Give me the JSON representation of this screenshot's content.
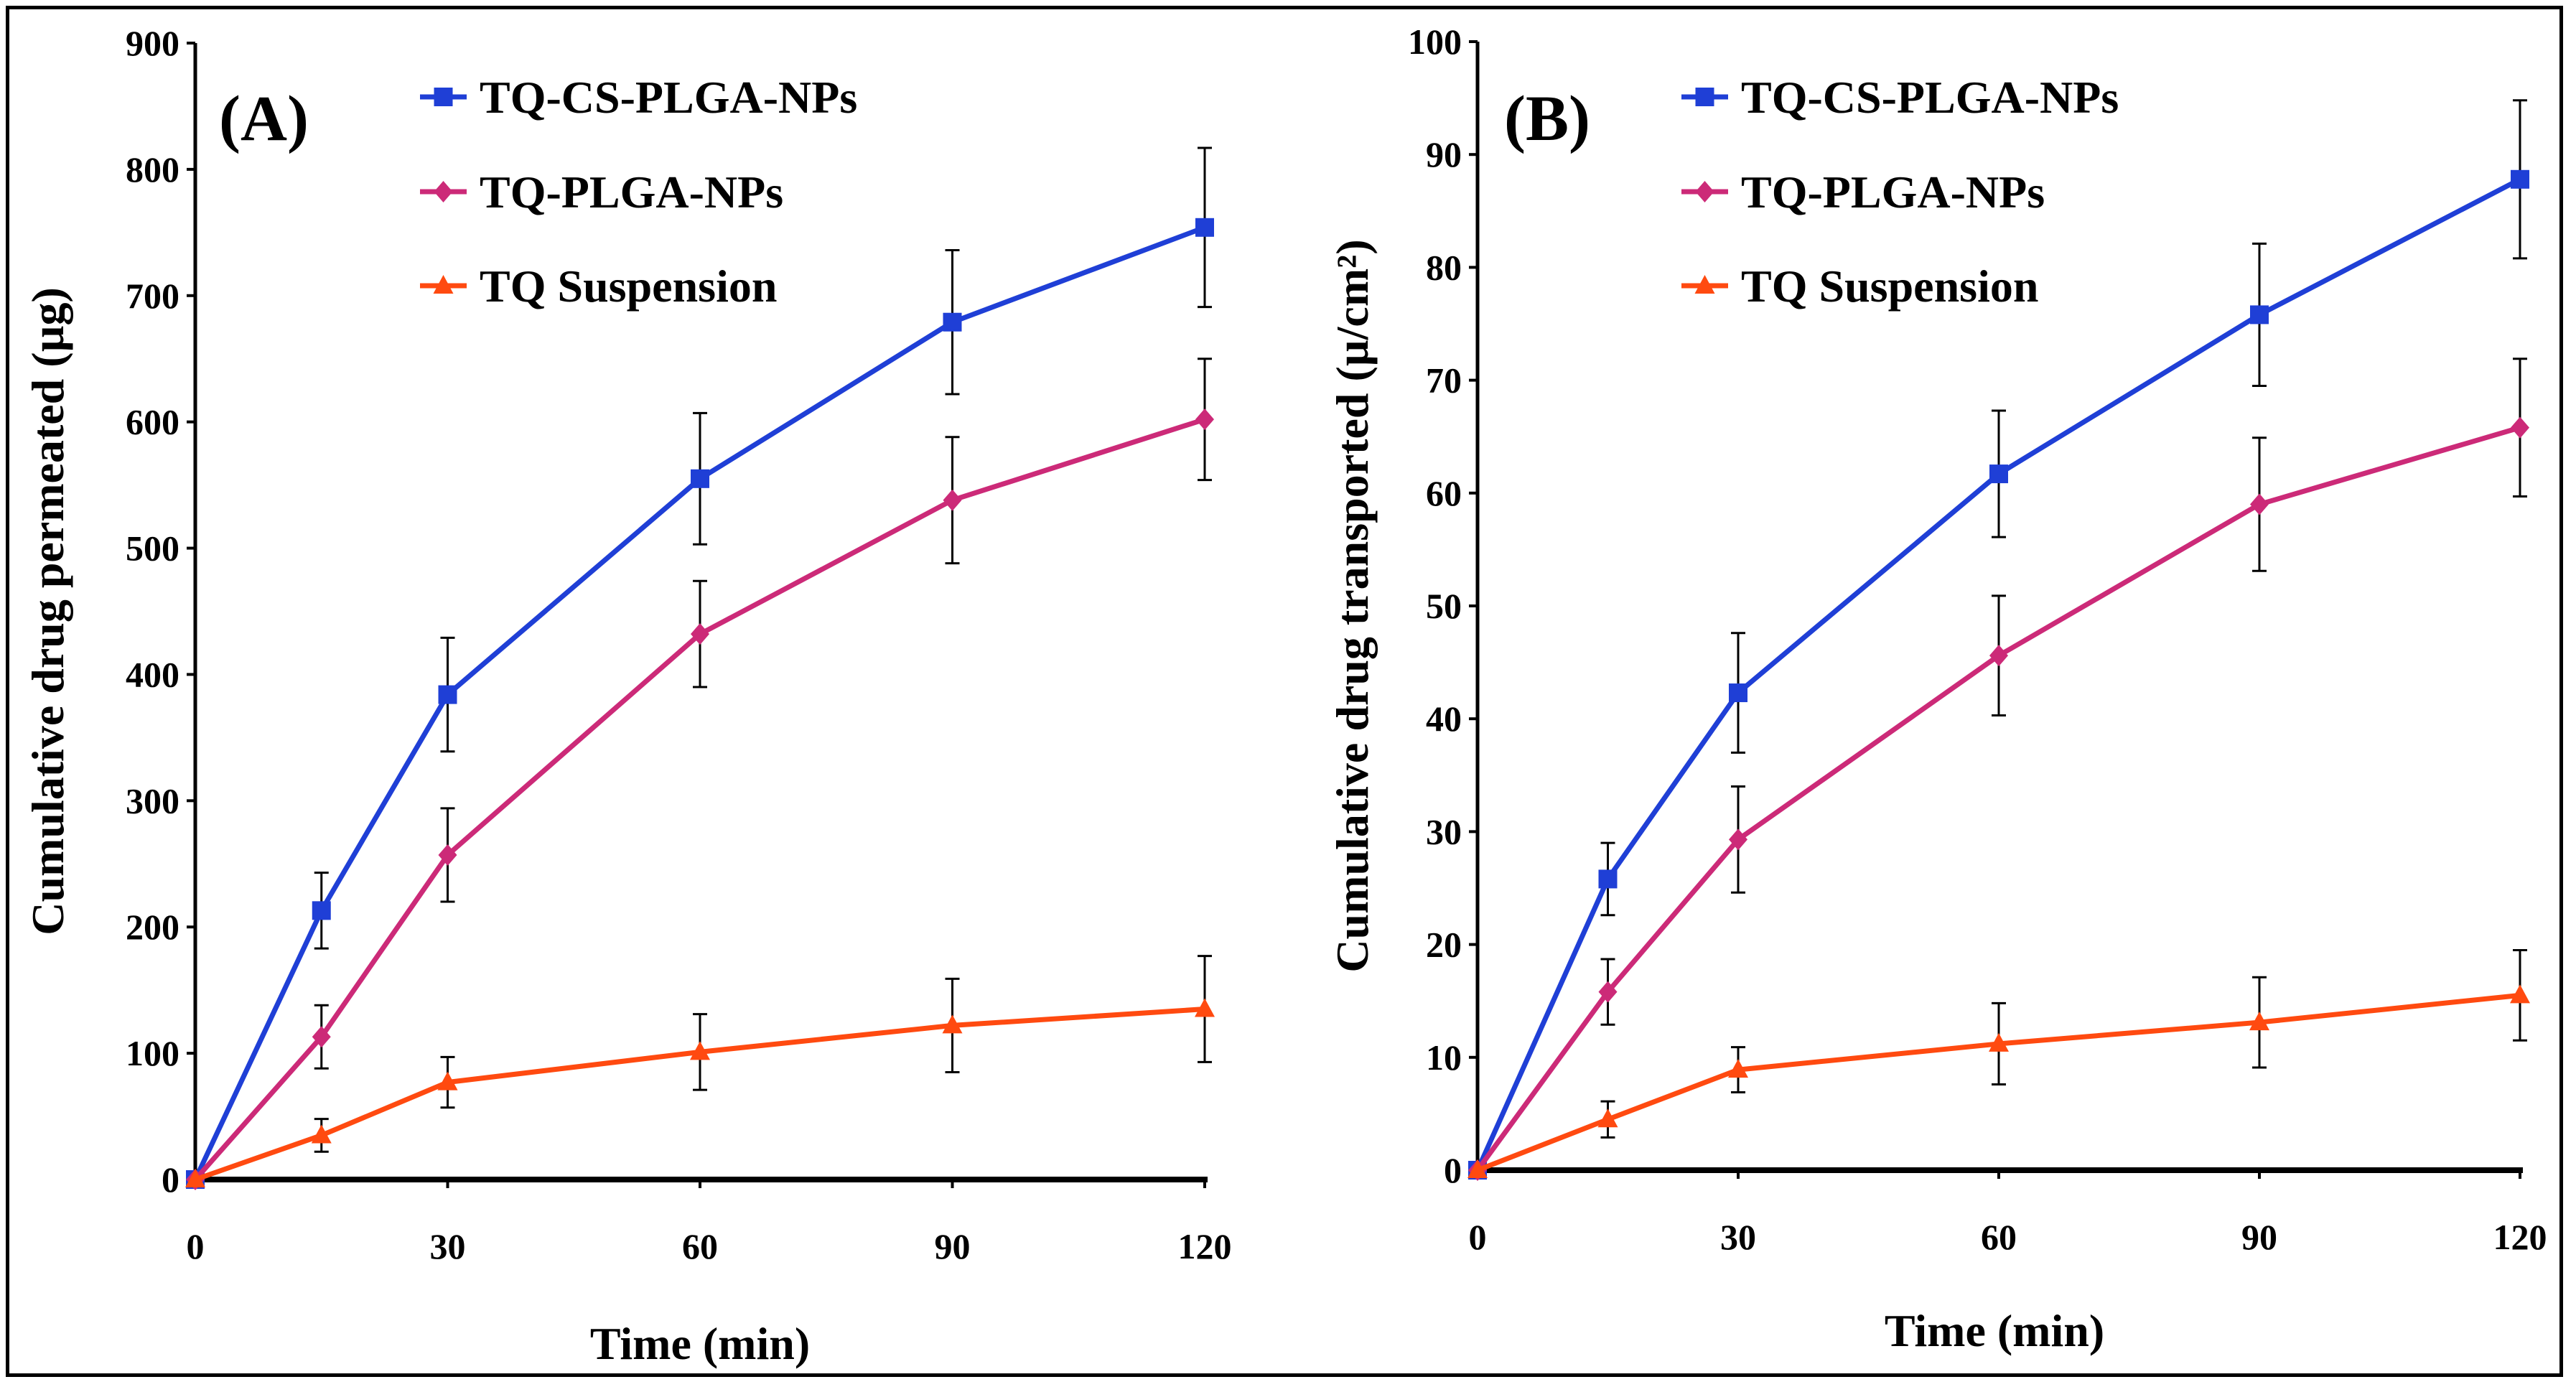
{
  "chart_data": [
    {
      "type": "line",
      "panel_label": "(A)",
      "xlabel": "Time (min)",
      "ylabel": "Cumulative  drug  permeated  (µg)",
      "xlim": [
        0,
        120
      ],
      "ylim": [
        0,
        900
      ],
      "x_ticks": [
        "0",
        "30",
        "60",
        "90",
        "120"
      ],
      "y_ticks": [
        "0",
        "100",
        "200",
        "300",
        "400",
        "500",
        "600",
        "700",
        "800",
        "900"
      ],
      "legend_position": "top-center",
      "x": [
        0,
        15,
        30,
        60,
        90,
        120
      ],
      "series": [
        {
          "name": "TQ-CS-PLGA-NPs",
          "color": "#1f3fd6",
          "marker": "square",
          "values": [
            0,
            213,
            384,
            555,
            679,
            754
          ],
          "errors": [
            0,
            30,
            45,
            52,
            57,
            63
          ]
        },
        {
          "name": "TQ-PLGA-NPs",
          "color": "#cc2a78",
          "marker": "diamond",
          "values": [
            0,
            113,
            257,
            432,
            538,
            602
          ],
          "errors": [
            0,
            25,
            37,
            42,
            50,
            48
          ]
        },
        {
          "name": "TQ Suspension",
          "color": "#ff4a10",
          "marker": "triangle",
          "values": [
            0,
            35,
            77,
            101,
            122,
            135
          ],
          "errors": [
            0,
            13,
            20,
            30,
            37,
            42
          ]
        }
      ]
    },
    {
      "type": "line",
      "panel_label": "(B)",
      "xlabel": "Time (min)",
      "ylabel": "Cumulative  drug  transported  (µ/cm²)",
      "xlim": [
        0,
        120
      ],
      "ylim": [
        0,
        100
      ],
      "x_ticks": [
        "0",
        "30",
        "60",
        "90",
        "120"
      ],
      "y_ticks": [
        "0",
        "10",
        "20",
        "30",
        "40",
        "50",
        "60",
        "70",
        "80",
        "90",
        "100"
      ],
      "legend_position": "top-center",
      "x": [
        0,
        15,
        30,
        60,
        90,
        120
      ],
      "series": [
        {
          "name": "TQ-CS-PLGA-NPs",
          "color": "#1f3fd6",
          "marker": "square",
          "values": [
            0,
            25.8,
            42.3,
            61.7,
            75.8,
            87.8
          ],
          "errors": [
            0,
            3.2,
            5.3,
            5.6,
            6.3,
            7.0
          ]
        },
        {
          "name": "TQ-PLGA-NPs",
          "color": "#cc2a78",
          "marker": "diamond",
          "values": [
            0,
            15.8,
            29.3,
            45.6,
            59.0,
            65.8
          ],
          "errors": [
            0,
            2.9,
            4.7,
            5.3,
            5.9,
            6.1
          ]
        },
        {
          "name": "TQ Suspension",
          "color": "#ff4a10",
          "marker": "triangle",
          "values": [
            0,
            4.5,
            8.9,
            11.2,
            13.1,
            15.5
          ],
          "errors": [
            0,
            1.6,
            2.0,
            3.6,
            4.0,
            4.0
          ]
        }
      ]
    }
  ]
}
